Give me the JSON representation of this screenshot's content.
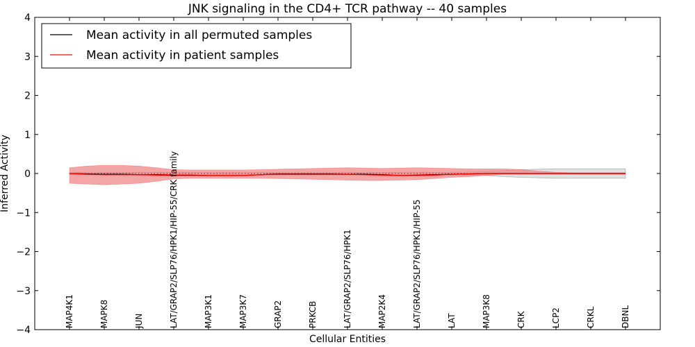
{
  "chart_data": {
    "type": "line",
    "title": "JNK signaling in the CD4+ TCR pathway -- 40 samples",
    "xlabel": "Cellular Entities",
    "ylabel": "Inferred Activity",
    "ylim": [
      -4,
      4
    ],
    "yticks": [
      4,
      3,
      2,
      1,
      0,
      -1,
      -2,
      -3,
      -4
    ],
    "ytick_labels": [
      "4",
      "3",
      "2",
      "1",
      "0",
      "−1",
      "−2",
      "−3",
      "−4"
    ],
    "x": [
      1,
      1.5,
      2,
      2.5,
      3,
      3.5,
      4,
      4.5,
      5,
      5.5,
      6,
      6.5,
      7,
      7.5,
      8,
      8.5,
      9,
      9.5,
      10,
      10.5,
      11,
      11.5,
      12,
      12.5,
      13,
      13.5,
      14,
      14.5,
      15,
      15.5,
      16,
      16.5,
      17
    ],
    "xlim": [
      0,
      18
    ],
    "reference_line": {
      "value": 0,
      "style": "dotted",
      "color": "#cc0000"
    },
    "series": [
      {
        "name": "Mean activity in all permuted samples",
        "color": "#000000",
        "values": [
          0,
          -0.01,
          -0.02,
          -0.02,
          -0.03,
          -0.03,
          -0.04,
          -0.04,
          -0.05,
          -0.05,
          -0.05,
          -0.03,
          -0.01,
          -0.01,
          -0.01,
          -0.01,
          -0.02,
          -0.02,
          -0.03,
          -0.05,
          -0.04,
          -0.03,
          -0.02,
          -0.01,
          0,
          0,
          0,
          0,
          0,
          0,
          0,
          0,
          0
        ],
        "band_upper": [
          0.03,
          0.03,
          0.03,
          0.03,
          0.03,
          0.03,
          0.03,
          0.03,
          0.03,
          0.03,
          0.03,
          0.03,
          0.03,
          0.03,
          0.03,
          0.03,
          0.03,
          0.03,
          0.03,
          0.03,
          0.03,
          0.03,
          0.03,
          0.04,
          0.05,
          0.08,
          0.1,
          0.11,
          0.12,
          0.12,
          0.12,
          0.12,
          0.12
        ],
        "band_lower": [
          -0.03,
          -0.04,
          -0.05,
          -0.05,
          -0.06,
          -0.06,
          -0.07,
          -0.07,
          -0.08,
          -0.08,
          -0.08,
          -0.06,
          -0.04,
          -0.04,
          -0.04,
          -0.04,
          -0.05,
          -0.05,
          -0.06,
          -0.08,
          -0.07,
          -0.06,
          -0.05,
          -0.05,
          -0.05,
          -0.08,
          -0.1,
          -0.11,
          -0.12,
          -0.12,
          -0.12,
          -0.12,
          -0.12
        ],
        "band_color": "#c8c8c8"
      },
      {
        "name": "Mean activity in patient samples",
        "color": "#ff0000",
        "values": [
          0,
          -0.02,
          -0.03,
          -0.03,
          -0.03,
          -0.04,
          -0.05,
          -0.05,
          -0.05,
          -0.05,
          -0.05,
          -0.03,
          -0.02,
          -0.02,
          -0.02,
          -0.02,
          -0.02,
          -0.03,
          -0.04,
          -0.05,
          -0.05,
          -0.04,
          -0.02,
          -0.01,
          0,
          0,
          0,
          0,
          0,
          0,
          0,
          0,
          0
        ],
        "band_upper": [
          0.15,
          0.19,
          0.21,
          0.21,
          0.19,
          0.15,
          0.1,
          0.09,
          0.09,
          0.09,
          0.09,
          0.1,
          0.11,
          0.12,
          0.13,
          0.14,
          0.15,
          0.14,
          0.13,
          0.14,
          0.15,
          0.14,
          0.13,
          0.12,
          0.12,
          0.12,
          0.1,
          0.06,
          0.03,
          0.02,
          0.02,
          0.02,
          0.02
        ],
        "band_lower": [
          -0.25,
          -0.27,
          -0.29,
          -0.27,
          -0.25,
          -0.2,
          -0.14,
          -0.12,
          -0.12,
          -0.12,
          -0.12,
          -0.12,
          -0.13,
          -0.14,
          -0.15,
          -0.16,
          -0.17,
          -0.18,
          -0.18,
          -0.17,
          -0.16,
          -0.13,
          -0.1,
          -0.08,
          -0.05,
          -0.02,
          -0.02,
          -0.02,
          -0.02,
          -0.02,
          -0.02,
          -0.02,
          -0.02
        ],
        "band_color": "#f08080"
      }
    ],
    "entities": [
      {
        "label": "MAP4K1",
        "x": 1
      },
      {
        "label": "MAPK8",
        "x": 2
      },
      {
        "label": "JUN",
        "x": 3
      },
      {
        "label": "LAT/GRAP2/SLP76/HPK1/HIP-55/CRK family",
        "x": 4
      },
      {
        "label": "MAP3K1",
        "x": 5
      },
      {
        "label": "MAP3K7",
        "x": 6
      },
      {
        "label": "GRAP2",
        "x": 7
      },
      {
        "label": "PRKCB",
        "x": 8
      },
      {
        "label": "LAT/GRAP2/SLP76/HPK1",
        "x": 9
      },
      {
        "label": "MAP2K4",
        "x": 10
      },
      {
        "label": "LAT/GRAP2/SLP76/HPK1/HIP-55",
        "x": 11
      },
      {
        "label": "LAT",
        "x": 12
      },
      {
        "label": "MAP3K8",
        "x": 13
      },
      {
        "label": "CRK",
        "x": 14
      },
      {
        "label": "LCP2",
        "x": 15
      },
      {
        "label": "CRKL",
        "x": 16
      },
      {
        "label": "DBNL",
        "x": 17
      }
    ],
    "legend": {
      "position": "top-left",
      "entries": [
        {
          "label": "Mean activity in all permuted samples",
          "color": "#000000"
        },
        {
          "label": "Mean activity in patient samples",
          "color": "#ff0000"
        }
      ]
    }
  }
}
